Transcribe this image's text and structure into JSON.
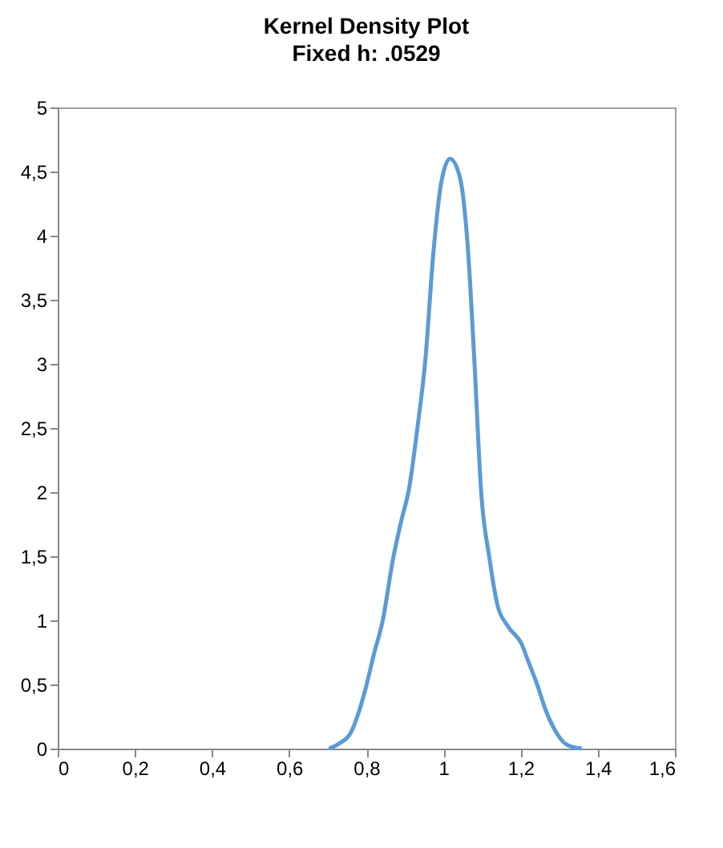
{
  "chart_data": {
    "type": "line",
    "title": "Kernel Density Plot",
    "subtitle": "Fixed h: .0529",
    "x": [
      0.703,
      0.73,
      0.759,
      0.78,
      0.8,
      0.82,
      0.842,
      0.87,
      0.891,
      0.911,
      0.932,
      0.953,
      0.974,
      0.994,
      1.017,
      1.043,
      1.064,
      1.08,
      1.098,
      1.119,
      1.14,
      1.168,
      1.202,
      1.22,
      1.244,
      1.265,
      1.286,
      1.32,
      1.358
    ],
    "series": [
      {
        "color": "#5b9bd5",
        "values": [
          0,
          0.04,
          0.12,
          0.28,
          0.49,
          0.74,
          0.99,
          1.49,
          1.78,
          2.03,
          2.49,
          3.03,
          3.87,
          4.41,
          4.6,
          4.45,
          3.87,
          3.03,
          1.99,
          1.49,
          1.12,
          0.95,
          0.82,
          0.68,
          0.49,
          0.3,
          0.16,
          0.03,
          0
        ]
      }
    ],
    "xlim": [
      0,
      1.6
    ],
    "ylim": [
      0,
      5
    ],
    "xticks": [
      0,
      {
        "value": 0.2,
        "label": "0,2"
      },
      {
        "value": 0.4,
        "label": "0,4"
      },
      {
        "value": 0.6,
        "label": "0,6"
      },
      {
        "value": 0.8,
        "label": "0,8"
      },
      1,
      {
        "value": 1.2,
        "label": "1,2"
      },
      {
        "value": 1.4,
        "label": "1,4"
      },
      {
        "value": 1.6,
        "label": "1,6"
      }
    ],
    "yticks": [
      0,
      {
        "value": 0.5,
        "label": "0,5"
      },
      1,
      {
        "value": 1.5,
        "label": "1,5"
      },
      2,
      {
        "value": 2.5,
        "label": "2,5"
      },
      3,
      {
        "value": 3.5,
        "label": "3,5"
      },
      4,
      {
        "value": 4.5,
        "label": "4,5"
      },
      5
    ],
    "grid": false,
    "legend": false,
    "marker": "none",
    "line_style": "solid"
  }
}
